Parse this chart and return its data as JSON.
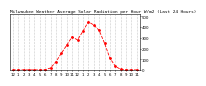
{
  "title": "Milwaukee Weather Average Solar Radiation per Hour W/m2 (Last 24 Hours)",
  "x_values": [
    0,
    1,
    2,
    3,
    4,
    5,
    6,
    7,
    8,
    9,
    10,
    11,
    12,
    13,
    14,
    15,
    16,
    17,
    18,
    19,
    20,
    21,
    22,
    23
  ],
  "y_values": [
    0,
    0,
    0,
    0,
    0,
    0,
    2,
    18,
    75,
    155,
    230,
    310,
    280,
    360,
    450,
    420,
    370,
    250,
    110,
    35,
    4,
    1,
    0,
    0
  ],
  "y_ticks": [
    0,
    100,
    200,
    300,
    400,
    500
  ],
  "x_ticks": [
    0,
    1,
    2,
    3,
    4,
    5,
    6,
    7,
    8,
    9,
    10,
    11,
    12,
    13,
    14,
    15,
    16,
    17,
    18,
    19,
    20,
    21,
    22,
    23
  ],
  "x_tick_labels": [
    "12",
    "1",
    "2",
    "3",
    "4",
    "5",
    "6",
    "7",
    "8",
    "9",
    "10",
    "11",
    "12",
    "1",
    "2",
    "3",
    "4",
    "5",
    "6",
    "7",
    "8",
    "9",
    "10",
    "11"
  ],
  "line_color": "#ff0000",
  "marker": "o",
  "marker_size": 1.0,
  "line_style": "--",
  "line_width": 0.6,
  "grid_color": "#999999",
  "grid_style": ":",
  "bg_color": "#ffffff",
  "title_fontsize": 3.2,
  "tick_fontsize": 2.8,
  "ylim": [
    0,
    520
  ],
  "xlim": [
    -0.5,
    23.5
  ]
}
